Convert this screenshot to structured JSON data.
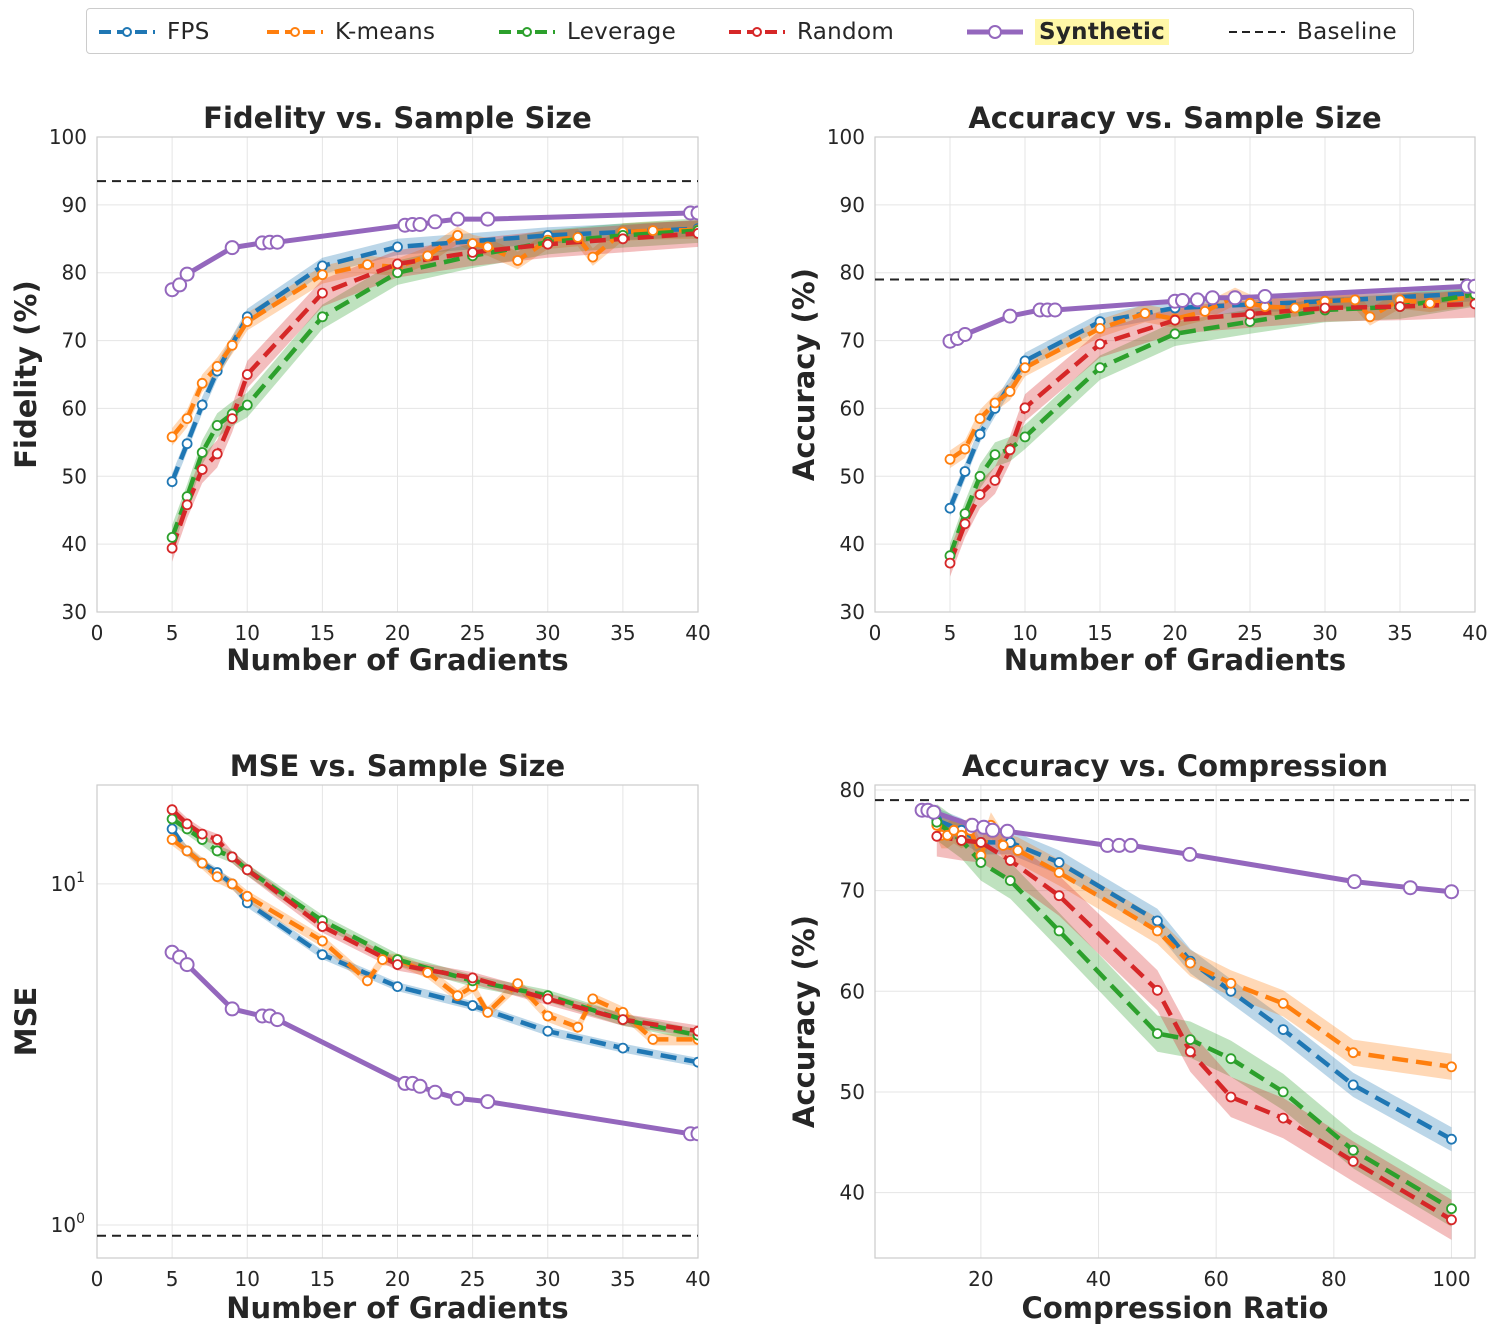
{
  "legend": {
    "items": [
      {
        "label": "FPS",
        "color": "#1f77b4",
        "style": "dashed"
      },
      {
        "label": "K-means",
        "color": "#ff7f0e",
        "style": "dashed"
      },
      {
        "label": "Leverage",
        "color": "#2ca02c",
        "style": "dashed"
      },
      {
        "label": "Random",
        "color": "#d62728",
        "style": "dashed"
      },
      {
        "label": "Synthetic",
        "color": "#9467bd",
        "style": "solid",
        "highlight": true
      },
      {
        "label": "Baseline",
        "color": "#222222",
        "style": "dash-black"
      }
    ]
  },
  "chart_data": [
    {
      "id": "fidelity",
      "type": "line",
      "title": "Fidelity vs. Sample Size",
      "xlabel": "Number of Gradients",
      "ylabel": "Fidelity (%)",
      "xlim": [
        0,
        40
      ],
      "ylim": [
        30,
        100
      ],
      "xscale": "linear",
      "yscale": "linear",
      "xticks": [
        0,
        5,
        10,
        15,
        20,
        25,
        30,
        35,
        40
      ],
      "xtick_labels": [
        "0",
        "5",
        "10",
        "15",
        "20",
        "25",
        "30",
        "35",
        "40"
      ],
      "yticks": [
        30,
        40,
        50,
        60,
        70,
        80,
        90,
        100
      ],
      "ytick_labels": [
        "30",
        "40",
        "50",
        "60",
        "70",
        "80",
        "90",
        "100"
      ],
      "baseline": 93.5,
      "series": [
        {
          "name": "FPS",
          "x": [
            5,
            6,
            7,
            8,
            10,
            15,
            20,
            30,
            40
          ],
          "y": [
            49.2,
            54.8,
            60.5,
            65.5,
            73.5,
            81.0,
            83.8,
            85.5,
            86.5
          ],
          "band": 1.2
        },
        {
          "name": "K-means",
          "x": [
            5,
            6,
            7,
            8,
            9,
            10,
            15,
            18,
            20,
            22,
            24,
            25,
            26,
            28,
            30,
            32,
            33,
            35,
            37,
            40
          ],
          "y": [
            55.8,
            58.5,
            63.7,
            66.2,
            69.3,
            72.8,
            79.7,
            81.2,
            80.8,
            82.5,
            85.5,
            84.3,
            83.8,
            81.8,
            84.8,
            85.2,
            82.3,
            86.0,
            86.2,
            86.3
          ],
          "band": 1.3
        },
        {
          "name": "Leverage",
          "x": [
            5,
            6,
            7,
            8,
            9,
            10,
            15,
            20,
            25,
            30,
            35,
            40
          ],
          "y": [
            41.0,
            47.0,
            53.5,
            57.5,
            59.2,
            60.5,
            73.5,
            80.0,
            82.5,
            84.5,
            85.5,
            86.2
          ],
          "band": 1.8
        },
        {
          "name": "Random",
          "x": [
            5,
            6,
            7,
            8,
            9,
            10,
            15,
            20,
            25,
            30,
            35,
            40
          ],
          "y": [
            39.4,
            45.8,
            51.0,
            53.3,
            58.5,
            65.0,
            77.0,
            81.3,
            83.0,
            84.2,
            85.0,
            85.8
          ],
          "band": 2.0
        },
        {
          "name": "Synthetic",
          "x": [
            5,
            5.5,
            6,
            9,
            11,
            11.5,
            12,
            20.5,
            21,
            21.5,
            22.5,
            24,
            26,
            39.5,
            40
          ],
          "y": [
            77.5,
            78.2,
            79.8,
            83.7,
            84.4,
            84.5,
            84.5,
            87.0,
            87.1,
            87.1,
            87.5,
            87.9,
            87.9,
            88.8,
            88.8
          ],
          "band": 0
        }
      ]
    },
    {
      "id": "accuracy-sample",
      "type": "line",
      "title": "Accuracy vs. Sample Size",
      "xlabel": "Number of Gradients",
      "ylabel": "Accuracy (%)",
      "xlim": [
        0,
        40
      ],
      "ylim": [
        30,
        100
      ],
      "xscale": "linear",
      "yscale": "linear",
      "xticks": [
        0,
        5,
        10,
        15,
        20,
        25,
        30,
        35,
        40
      ],
      "xtick_labels": [
        "0",
        "5",
        "10",
        "15",
        "20",
        "25",
        "30",
        "35",
        "40"
      ],
      "yticks": [
        30,
        40,
        50,
        60,
        70,
        80,
        90,
        100
      ],
      "ytick_labels": [
        "30",
        "40",
        "50",
        "60",
        "70",
        "80",
        "90",
        "100"
      ],
      "baseline": 79.0,
      "series": [
        {
          "name": "FPS",
          "x": [
            5,
            6,
            7,
            8,
            10,
            15,
            20,
            30,
            40
          ],
          "y": [
            45.3,
            50.7,
            56.2,
            60.0,
            67.0,
            72.8,
            74.8,
            75.8,
            77.0
          ],
          "band": 1.2
        },
        {
          "name": "K-means",
          "x": [
            5,
            6,
            7,
            8,
            9,
            10,
            15,
            18,
            20,
            22,
            24,
            25,
            26,
            28,
            30,
            32,
            33,
            35,
            37,
            40
          ],
          "y": [
            52.5,
            54.0,
            58.5,
            60.8,
            62.5,
            66.0,
            71.8,
            74.0,
            73.2,
            74.3,
            76.5,
            75.5,
            75.0,
            74.8,
            75.8,
            76.0,
            73.5,
            76.0,
            75.5,
            76.5
          ],
          "band": 1.3
        },
        {
          "name": "Leverage",
          "x": [
            5,
            6,
            7,
            8,
            9,
            10,
            15,
            20,
            25,
            30,
            35,
            40
          ],
          "y": [
            38.3,
            44.5,
            50.0,
            53.2,
            54.0,
            55.8,
            66.0,
            71.0,
            72.8,
            74.5,
            75.0,
            76.8
          ],
          "band": 1.8
        },
        {
          "name": "Random",
          "x": [
            5,
            6,
            7,
            8,
            9,
            10,
            15,
            20,
            25,
            30,
            35,
            40
          ],
          "y": [
            37.2,
            43.0,
            47.3,
            49.4,
            53.9,
            60.1,
            69.5,
            73.0,
            73.9,
            74.8,
            75.0,
            75.4
          ],
          "band": 2.0
        },
        {
          "name": "Synthetic",
          "x": [
            5,
            5.5,
            6,
            9,
            11,
            11.5,
            12,
            20,
            20.5,
            21.5,
            22.5,
            24,
            26,
            39.5,
            40
          ],
          "y": [
            69.9,
            70.3,
            70.9,
            73.6,
            74.5,
            74.5,
            74.5,
            75.8,
            75.9,
            76.0,
            76.3,
            76.3,
            76.5,
            78.0,
            78.0
          ],
          "band": 0
        }
      ]
    },
    {
      "id": "mse",
      "type": "line",
      "title": "MSE vs. Sample Size",
      "xlabel": "Number of Gradients",
      "ylabel": "MSE",
      "xlim": [
        0,
        40
      ],
      "ylim": [
        0.8,
        19.5
      ],
      "xscale": "linear",
      "yscale": "log",
      "xticks": [
        0,
        5,
        10,
        15,
        20,
        25,
        30,
        35,
        40
      ],
      "xtick_labels": [
        "0",
        "5",
        "10",
        "15",
        "20",
        "25",
        "30",
        "35",
        "40"
      ],
      "yticks": [
        1,
        10
      ],
      "ytick_labels": [
        "10⁰",
        "10¹"
      ],
      "baseline": 0.93,
      "series": [
        {
          "name": "FPS",
          "x": [
            5,
            6,
            7,
            8,
            9,
            10,
            15,
            20,
            25,
            30,
            35,
            40
          ],
          "y": [
            14.5,
            12.5,
            11.5,
            10.8,
            10.0,
            8.8,
            6.2,
            5.0,
            4.4,
            3.7,
            3.3,
            3.0
          ],
          "band": 0.03
        },
        {
          "name": "K-means",
          "x": [
            5,
            6,
            7,
            8,
            9,
            10,
            15,
            18,
            19,
            20,
            22,
            24,
            25,
            26,
            28,
            30,
            32,
            33,
            35,
            37,
            40
          ],
          "y": [
            13.5,
            12.5,
            11.5,
            10.5,
            10.0,
            9.2,
            6.8,
            5.2,
            6.0,
            6.0,
            5.5,
            4.7,
            5.0,
            4.2,
            5.1,
            4.1,
            3.8,
            4.6,
            4.2,
            3.5,
            3.5
          ],
          "band": 0.04
        },
        {
          "name": "Leverage",
          "x": [
            5,
            6,
            7,
            8,
            9,
            10,
            15,
            20,
            25,
            30,
            35,
            40
          ],
          "y": [
            15.5,
            14.5,
            13.5,
            12.5,
            12.0,
            11.0,
            7.8,
            6.0,
            5.2,
            4.7,
            4.0,
            3.6
          ],
          "band": 0.04
        },
        {
          "name": "Random",
          "x": [
            5,
            6,
            7,
            8,
            9,
            10,
            15,
            20,
            25,
            30,
            35,
            40
          ],
          "y": [
            16.5,
            15.0,
            14.0,
            13.5,
            12.0,
            11.0,
            7.5,
            5.8,
            5.3,
            4.6,
            4.0,
            3.7
          ],
          "band": 0.04
        },
        {
          "name": "Synthetic",
          "x": [
            5,
            5.5,
            6,
            9,
            11,
            11.5,
            12,
            20.5,
            21,
            21.5,
            22.5,
            24,
            26,
            39.5,
            40
          ],
          "y": [
            6.3,
            6.1,
            5.8,
            4.3,
            4.1,
            4.1,
            4.0,
            2.6,
            2.6,
            2.55,
            2.45,
            2.35,
            2.3,
            1.85,
            1.85
          ],
          "band": 0
        }
      ]
    },
    {
      "id": "accuracy-compression",
      "type": "line",
      "title": "Accuracy vs. Compression",
      "xlabel": "Compression Ratio",
      "ylabel": "Accuracy (%)",
      "xlim": [
        2,
        104
      ],
      "ylim": [
        33.5,
        80.5
      ],
      "xscale": "linear",
      "yscale": "linear",
      "xticks": [
        20,
        40,
        60,
        80,
        100
      ],
      "xtick_labels": [
        "20",
        "40",
        "60",
        "80",
        "100"
      ],
      "yticks": [
        40,
        50,
        60,
        70,
        80
      ],
      "ytick_labels": [
        "40",
        "50",
        "60",
        "70",
        "80"
      ],
      "baseline": 79.0,
      "series": [
        {
          "name": "FPS",
          "x": [
            12.5,
            16.7,
            20,
            25,
            33.3,
            50,
            55.6,
            62.5,
            71.4,
            83.3,
            100
          ],
          "y": [
            77.0,
            76.0,
            74.8,
            74.8,
            72.8,
            67.0,
            63.0,
            60.0,
            56.2,
            50.7,
            45.3
          ],
          "band": 1.2
        },
        {
          "name": "K-means",
          "x": [
            12.5,
            13.3,
            14.3,
            15.4,
            16.7,
            18.2,
            20,
            21.7,
            23.8,
            26.3,
            33.3,
            50,
            55.6,
            62.5,
            71.4,
            83.3,
            100
          ],
          "y": [
            76.5,
            75.5,
            75.5,
            76.0,
            75.5,
            76.0,
            73.5,
            76.5,
            74.5,
            74.0,
            71.8,
            66.0,
            62.8,
            60.8,
            58.8,
            53.9,
            52.5
          ],
          "band": 1.3
        },
        {
          "name": "Leverage",
          "x": [
            12.5,
            16.7,
            20,
            25,
            33.3,
            50,
            55.6,
            62.5,
            71.4,
            83.3,
            100
          ],
          "y": [
            76.8,
            75.0,
            72.8,
            71.0,
            66.0,
            55.8,
            55.2,
            53.3,
            50.0,
            44.2,
            38.4
          ],
          "band": 1.8
        },
        {
          "name": "Random",
          "x": [
            12.5,
            16.7,
            20,
            25,
            33.3,
            50,
            55.6,
            62.5,
            71.4,
            83.3,
            100
          ],
          "y": [
            75.4,
            75.0,
            74.8,
            73.0,
            69.5,
            60.1,
            54.0,
            49.5,
            47.4,
            43.1,
            37.3
          ],
          "band": 2.0
        },
        {
          "name": "Synthetic",
          "x": [
            10,
            11,
            12,
            18.5,
            20.5,
            22,
            24.5,
            41.5,
            43.5,
            45.5,
            55.5,
            83.5,
            93,
            100
          ],
          "y": [
            78.0,
            78.0,
            77.8,
            76.5,
            76.3,
            76.0,
            75.9,
            74.5,
            74.5,
            74.5,
            73.6,
            70.9,
            70.3,
            69.9
          ],
          "band": 0
        }
      ]
    }
  ]
}
